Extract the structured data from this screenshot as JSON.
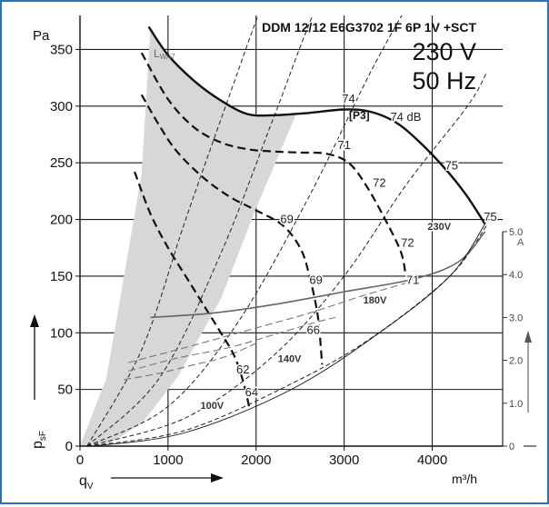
{
  "chart_data": {
    "type": "line",
    "title": "DDM 12/12 E6G3702 1F 6P 1V +SCT",
    "voltage": "230 V",
    "frequency": "50 Hz",
    "xlabel": "q",
    "xlabel_sub": "V",
    "xunit": "m³/h",
    "ylabel": "p",
    "ylabel_sub": "sF",
    "yunit": "Pa",
    "y2unit": "A",
    "xlim": [
      0,
      4800
    ],
    "ylim": [
      0,
      380
    ],
    "y2lim": [
      0,
      5.0
    ],
    "x_ticks": [
      "0",
      "1000",
      "2000",
      "3000",
      "4000"
    ],
    "x_tick_values": [
      0,
      1000,
      2000,
      3000,
      4000
    ],
    "y_ticks": [
      "0",
      "50",
      "100",
      "150",
      "200",
      "250",
      "300",
      "350"
    ],
    "y_tick_values": [
      0,
      50,
      100,
      150,
      200,
      250,
      300,
      350
    ],
    "y2_ticks": [
      "0",
      "1.0",
      "2.0",
      "3.0",
      "4.0",
      "5.0"
    ],
    "y2_tick_values": [
      0,
      1.0,
      2.0,
      3.0,
      4.0,
      5.0
    ],
    "grid": true,
    "sound_label_main": "L",
    "sound_label_sub": "WA7",
    "point_label": "[P3]",
    "series": [
      {
        "name": "230V",
        "role": "pressure",
        "style": "solid-thick",
        "x": [
          780,
          1000,
          1300,
          1600,
          1900,
          2200,
          2600,
          3000,
          3300,
          3600,
          3900,
          4200,
          4400,
          4600
        ],
        "y": [
          370,
          345,
          322,
          305,
          293,
          292,
          294,
          297,
          295,
          285,
          265,
          240,
          220,
          196
        ]
      },
      {
        "name": "180V",
        "role": "pressure",
        "style": "dashed-thick",
        "x": [
          700,
          1000,
          1300,
          1600,
          1900,
          2200,
          2500,
          2800,
          3050,
          3250,
          3500,
          3650,
          3700
        ],
        "y": [
          347,
          306,
          281,
          268,
          262,
          260,
          259,
          258,
          250,
          230,
          195,
          170,
          150
        ]
      },
      {
        "name": "140V",
        "role": "pressure",
        "style": "dashed-thick",
        "x": [
          700,
          900,
          1100,
          1400,
          1700,
          2000,
          2300,
          2500,
          2600,
          2700,
          2750
        ],
        "y": [
          310,
          283,
          260,
          237,
          220,
          208,
          195,
          175,
          152,
          115,
          72
        ]
      },
      {
        "name": "100V",
        "role": "pressure",
        "style": "dashed-thick",
        "x": [
          620,
          800,
          1000,
          1200,
          1400,
          1600,
          1750,
          1850,
          1920
        ],
        "y": [
          242,
          205,
          175,
          150,
          125,
          100,
          80,
          58,
          35
        ]
      },
      {
        "name": "230V",
        "role": "current",
        "style": "solid-gray",
        "x": [
          800,
          1500,
          2200,
          3000,
          3800,
          4300,
          4600
        ],
        "y": [
          3.0,
          3.1,
          3.3,
          3.6,
          3.9,
          4.3,
          5.0
        ]
      }
    ],
    "annotations": [
      {
        "text": "74",
        "x": 3050,
        "y": 303
      },
      {
        "text": "74 dB",
        "x": 3700,
        "y": 287
      },
      {
        "text": "71",
        "x": 3000,
        "y": 262
      },
      {
        "text": "72",
        "x": 3400,
        "y": 229
      },
      {
        "text": "75",
        "x": 4220,
        "y": 244
      },
      {
        "text": "75",
        "x": 4660,
        "y": 199
      },
      {
        "text": "69",
        "x": 2350,
        "y": 197
      },
      {
        "text": "69",
        "x": 2680,
        "y": 143
      },
      {
        "text": "72",
        "x": 3720,
        "y": 176
      },
      {
        "text": "71",
        "x": 3780,
        "y": 143
      },
      {
        "text": "66",
        "x": 2650,
        "y": 99
      },
      {
        "text": "62",
        "x": 1850,
        "y": 64
      },
      {
        "text": "64",
        "x": 1950,
        "y": 44
      },
      {
        "text": "230V",
        "x": 4080,
        "y": 191
      },
      {
        "text": "180V",
        "x": 3350,
        "y": 126
      },
      {
        "text": "140V",
        "x": 2380,
        "y": 74
      },
      {
        "text": "100V",
        "x": 1500,
        "y": 33
      }
    ],
    "sound_region": {
      "x": [
        0,
        300,
        700,
        800,
        1000,
        1300,
        1600,
        1900,
        2200,
        2450,
        2000,
        1600,
        1100,
        700,
        350
      ],
      "y": [
        0,
        60,
        240,
        370,
        345,
        322,
        305,
        293,
        292,
        292,
        210,
        130,
        60,
        20,
        3
      ]
    },
    "system_curves": [
      {
        "x": [
          80,
          1200,
          2400,
          3300,
          4200,
          4620
        ],
        "y": [
          0,
          14,
          55,
          95,
          150,
          195
        ]
      },
      {
        "x": [
          80,
          1200,
          2200,
          3000,
          3700,
          4400,
          4620
        ],
        "y": [
          0,
          25,
          80,
          150,
          230,
          300,
          330
        ]
      },
      {
        "x": [
          80,
          1000,
          1800,
          2600,
          3300,
          3800
        ],
        "y": [
          0,
          35,
          110,
          220,
          330,
          400
        ]
      },
      {
        "x": [
          80,
          900,
          1600,
          2200,
          2700,
          3100
        ],
        "y": [
          0,
          60,
          170,
          290,
          390,
          440
        ]
      },
      {
        "x": [
          80,
          700,
          1200,
          1700,
          2100,
          2450
        ],
        "y": [
          0,
          85,
          200,
          310,
          395,
          450
        ]
      }
    ],
    "current_low_voltage": [
      {
        "x": [
          550,
          1200,
          1900,
          2600,
          3200,
          3700
        ],
        "y": [
          1.95,
          2.3,
          2.7,
          3.1,
          3.5,
          3.8
        ]
      },
      {
        "x": [
          550,
          1100,
          1700,
          2200,
          2700,
          2900
        ],
        "y": [
          1.75,
          2.05,
          2.3,
          2.6,
          2.9,
          3.0
        ]
      },
      {
        "x": [
          500,
          900,
          1300,
          1600,
          1900,
          2000
        ],
        "y": [
          1.55,
          1.7,
          1.9,
          2.05,
          2.3,
          2.4
        ]
      }
    ]
  }
}
